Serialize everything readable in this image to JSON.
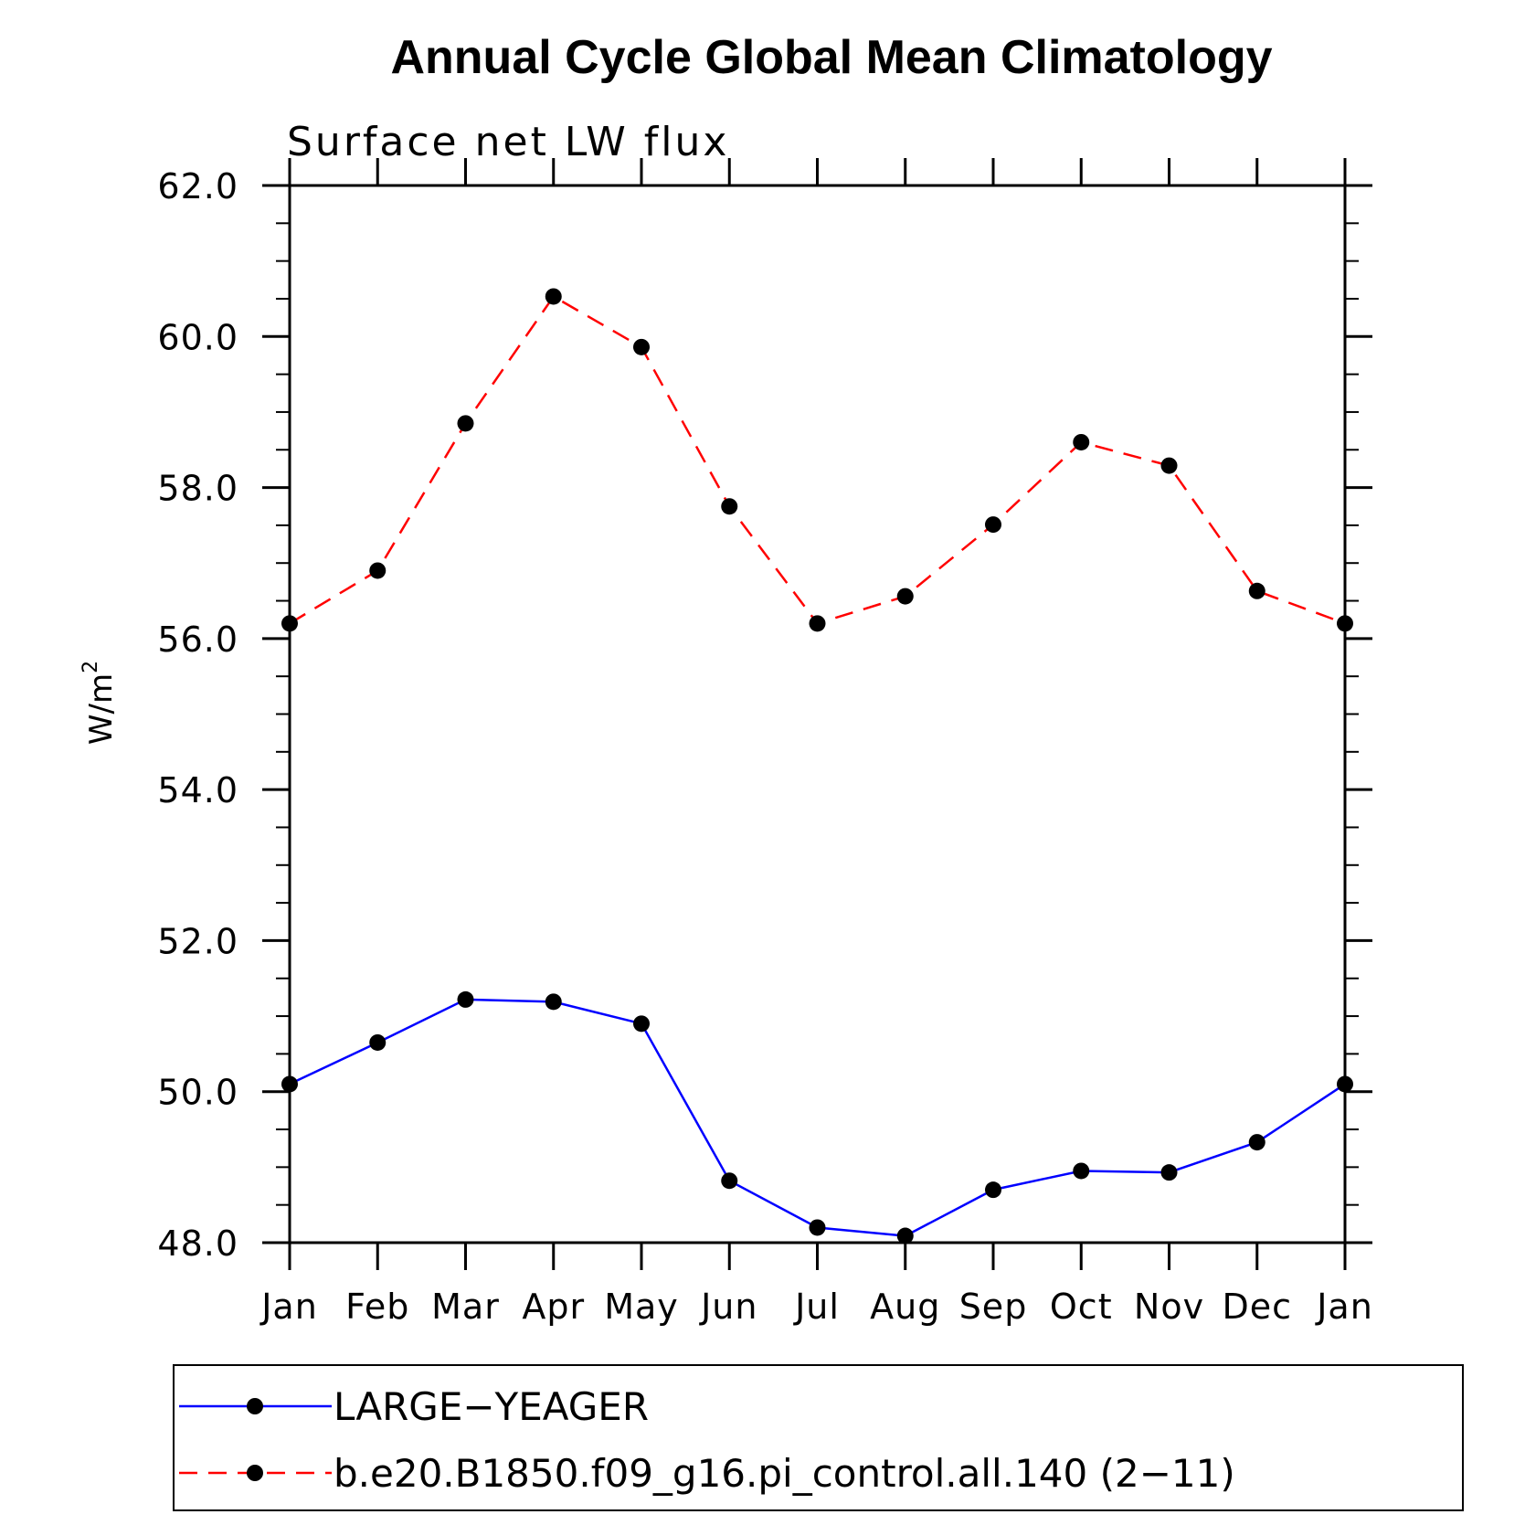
{
  "chart_data": {
    "type": "line",
    "title": "Annual Cycle Global Mean Climatology",
    "subtitle": "Surface net LW flux",
    "ylabel_base": "W/m",
    "ylabel_sup": "2",
    "categories": [
      "Jan",
      "Feb",
      "Mar",
      "Apr",
      "May",
      "Jun",
      "Jul",
      "Aug",
      "Sep",
      "Oct",
      "Nov",
      "Dec",
      "Jan"
    ],
    "ylim": [
      48.0,
      62.0
    ],
    "yticks": [
      "48.0",
      "50.0",
      "52.0",
      "54.0",
      "56.0",
      "58.0",
      "60.0",
      "62.0"
    ],
    "ytick_values": [
      48,
      50,
      52,
      54,
      56,
      58,
      60,
      62
    ],
    "minor_tick_step": 0.5,
    "grid": false,
    "legend_position": "bottom",
    "series": [
      {
        "name": "LARGE−YEAGER",
        "color": "#0000ff",
        "dash": "solid",
        "values": [
          50.1,
          50.65,
          51.22,
          51.19,
          50.9,
          48.82,
          48.2,
          48.09,
          48.7,
          48.95,
          48.93,
          49.33,
          50.1
        ]
      },
      {
        "name": "b.e20.B1850.f09_g16.pi_control.all.140 (2−11)",
        "color": "#ff0000",
        "dash": "dashed",
        "values": [
          56.2,
          56.9,
          58.85,
          60.53,
          59.86,
          57.75,
          56.2,
          56.56,
          57.51,
          58.6,
          58.29,
          56.63,
          56.2
        ]
      }
    ]
  }
}
